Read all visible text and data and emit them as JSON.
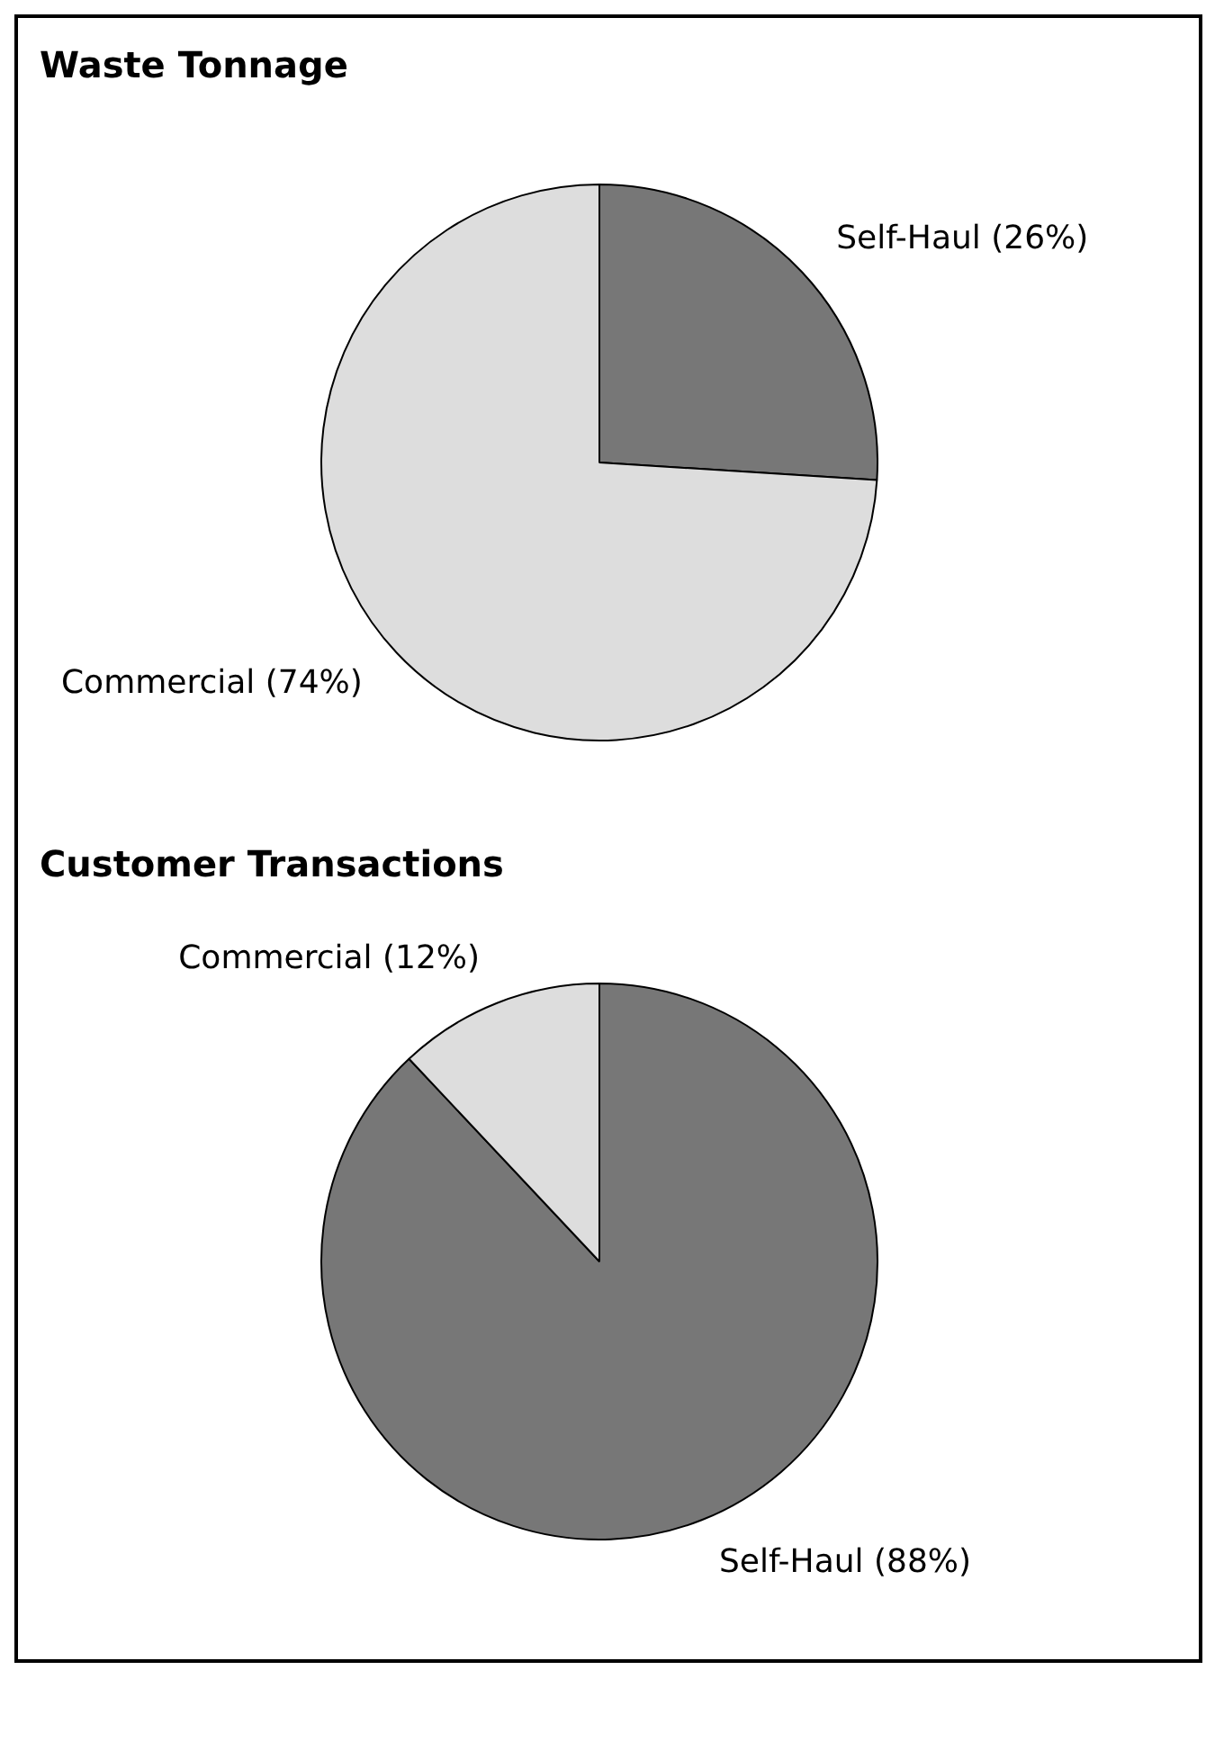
{
  "chart_data": [
    {
      "type": "pie",
      "title": "Waste Tonnage",
      "categories": [
        "Self-Haul (26%)",
        "Commercial (74%)"
      ],
      "values": [
        26,
        74
      ],
      "colors": [
        "#777777",
        "#dddddd"
      ],
      "legend": false
    },
    {
      "type": "pie",
      "title": "Customer Transactions",
      "categories": [
        "Self-Haul (88%)",
        "Commercial (12%)"
      ],
      "values": [
        88,
        12
      ],
      "colors": [
        "#777777",
        "#dddddd"
      ],
      "legend": false
    }
  ]
}
